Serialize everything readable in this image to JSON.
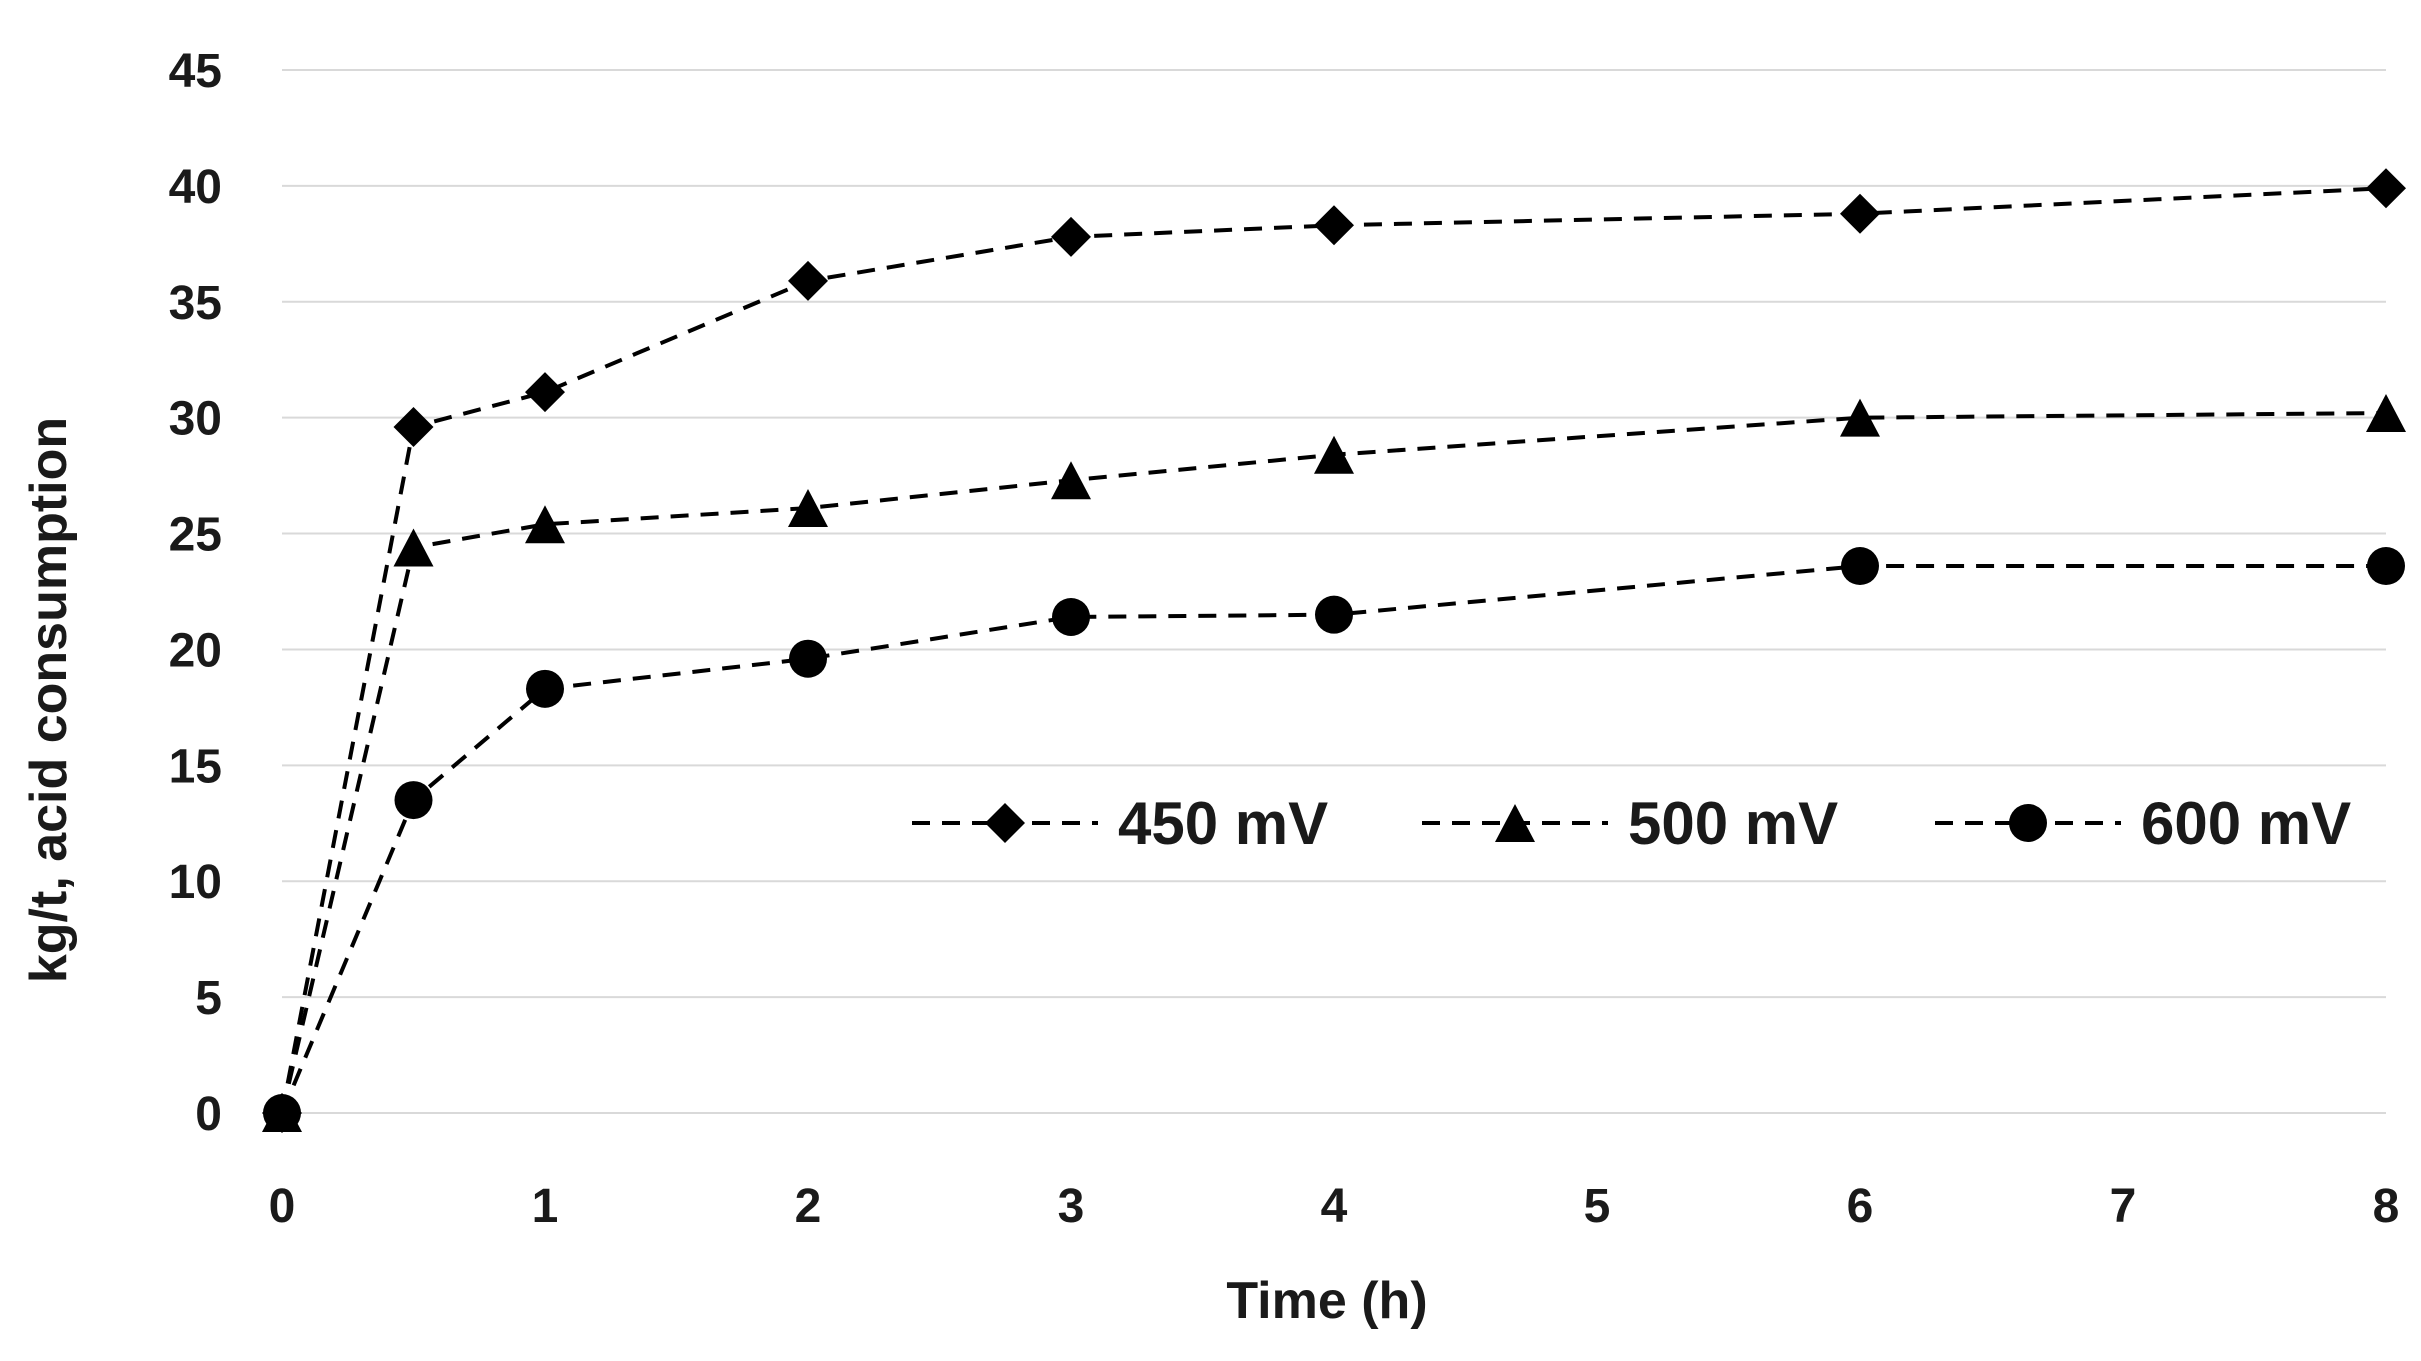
{
  "chart_data": {
    "type": "line",
    "title": "",
    "xlabel": "Time (h)",
    "ylabel": "kg/t, acid consumption",
    "xlim": [
      0,
      8
    ],
    "ylim": [
      0,
      45
    ],
    "x_ticks": [
      "0",
      "1",
      "2",
      "3",
      "4",
      "5",
      "6",
      "7",
      "8"
    ],
    "y_ticks": [
      "0",
      "5",
      "10",
      "15",
      "20",
      "25",
      "30",
      "35",
      "40",
      "45"
    ],
    "grid": true,
    "legend_position": "inside-right",
    "line_style": "dashed",
    "series": [
      {
        "name": "450 mV",
        "marker": "diamond",
        "x": [
          0,
          0.5,
          1,
          2,
          3,
          4,
          6,
          8
        ],
        "y": [
          0,
          29.6,
          31.1,
          35.9,
          37.8,
          38.3,
          38.8,
          39.9
        ]
      },
      {
        "name": "500 mV",
        "marker": "triangle",
        "x": [
          0,
          0.5,
          1,
          2,
          3,
          4,
          6,
          8
        ],
        "y": [
          0,
          24.4,
          25.4,
          26.1,
          27.3,
          28.4,
          30.0,
          30.2
        ]
      },
      {
        "name": "600 mV",
        "marker": "circle",
        "x": [
          0,
          0.5,
          1,
          2,
          3,
          4,
          6,
          8
        ],
        "y": [
          0,
          13.5,
          18.3,
          19.6,
          21.4,
          21.5,
          23.6,
          23.6
        ]
      }
    ]
  }
}
